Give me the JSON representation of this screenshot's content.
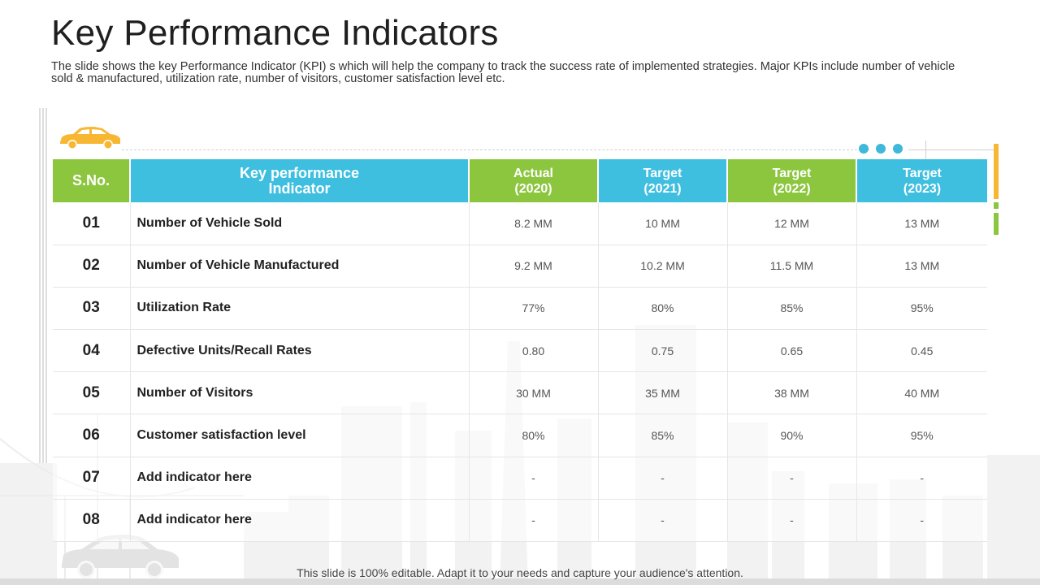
{
  "title": "Key Performance Indicators",
  "subtitle": "The slide shows the key Performance Indicator (KPI) s which will help the company to track the success rate of implemented strategies. Major KPIs include number of vehicle sold & manufactured, utilization rate, number of visitors, customer satisfaction level etc.",
  "colors": {
    "green": "#8cc63f",
    "blue": "#3fbfe0",
    "orange": "#f7b733"
  },
  "icons": {
    "top": "car-icon",
    "bottom": "car-icon"
  },
  "table": {
    "headers": {
      "sno": "S.No.",
      "kpi_line1": "Key performance",
      "kpi_line2": "Indicator",
      "col1_line1": "Actual",
      "col1_line2": "(2020)",
      "col2_line1": "Target",
      "col2_line2": "(2021)",
      "col3_line1": "Target",
      "col3_line2": "(2022)",
      "col4_line1": "Target",
      "col4_line2": "(2023)"
    },
    "rows": [
      {
        "sno": "01",
        "name": "Number of Vehicle Sold",
        "actual2020": "8.2 MM",
        "target2021": "10 MM",
        "target2022": "12 MM",
        "target2023": "13 MM"
      },
      {
        "sno": "02",
        "name": "Number of Vehicle Manufactured",
        "actual2020": "9.2 MM",
        "target2021": "10.2 MM",
        "target2022": "11.5 MM",
        "target2023": "13 MM"
      },
      {
        "sno": "03",
        "name": "Utilization Rate",
        "actual2020": "77%",
        "target2021": "80%",
        "target2022": "85%",
        "target2023": "95%"
      },
      {
        "sno": "04",
        "name": "Defective Units/Recall  Rates",
        "actual2020": "0.80",
        "target2021": "0.75",
        "target2022": "0.65",
        "target2023": "0.45"
      },
      {
        "sno": "05",
        "name": "Number of Visitors",
        "actual2020": "30 MM",
        "target2021": "35 MM",
        "target2022": "38 MM",
        "target2023": "40 MM"
      },
      {
        "sno": "06",
        "name": "Customer satisfaction  level",
        "actual2020": "80%",
        "target2021": "85%",
        "target2022": "90%",
        "target2023": "95%"
      },
      {
        "sno": "07",
        "name": "Add indicator here",
        "actual2020": "-",
        "target2021": "-",
        "target2022": "-",
        "target2023": "-"
      },
      {
        "sno": "08",
        "name": "Add indicator here",
        "actual2020": "-",
        "target2021": "-",
        "target2022": "-",
        "target2023": "-"
      }
    ]
  },
  "footer": "This slide is 100% editable. Adapt it to your needs and capture your audience's attention."
}
